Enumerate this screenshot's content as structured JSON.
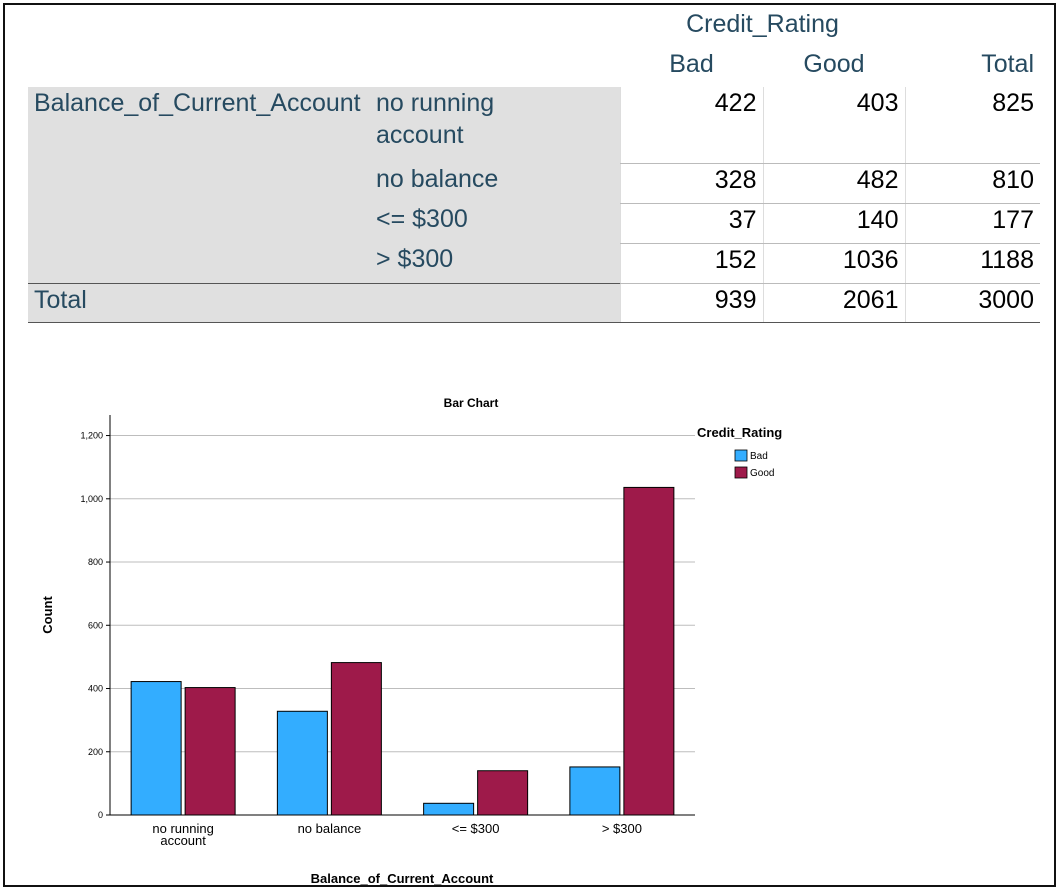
{
  "table": {
    "column_group": "Credit_Rating",
    "columns": [
      "Bad",
      "Good",
      "Total"
    ],
    "row_group": "Balance_of_Current_Account",
    "rows": [
      {
        "label": "no running account",
        "values": [
          422,
          403,
          825
        ]
      },
      {
        "label": "no balance",
        "values": [
          328,
          482,
          810
        ]
      },
      {
        "label": "<= $300",
        "values": [
          37,
          140,
          177
        ]
      },
      {
        "label": "> $300",
        "values": [
          152,
          1036,
          1188
        ]
      }
    ],
    "total": {
      "label": "Total",
      "values": [
        939,
        2061,
        3000
      ]
    }
  },
  "chart_data": {
    "type": "bar",
    "title": "Bar Chart",
    "x_label": "Balance_of_Current_Account",
    "y_label": "Count",
    "categories": [
      "no running account",
      "no balance",
      "<= $300",
      "> $300"
    ],
    "legend_title": "Credit_Rating",
    "legend": "right",
    "series": [
      {
        "name": "Bad",
        "color": "#33adff",
        "values": [
          422,
          328,
          37,
          152
        ]
      },
      {
        "name": "Good",
        "color": "#9e1a4a",
        "values": [
          403,
          482,
          140,
          1036
        ]
      }
    ],
    "ylim": [
      0,
      1265
    ],
    "yticks": [
      0,
      200,
      400,
      600,
      800,
      {
        "value": 1000,
        "label": "1,000"
      },
      {
        "value": 1200,
        "label": "1,200"
      }
    ],
    "grid": true
  }
}
